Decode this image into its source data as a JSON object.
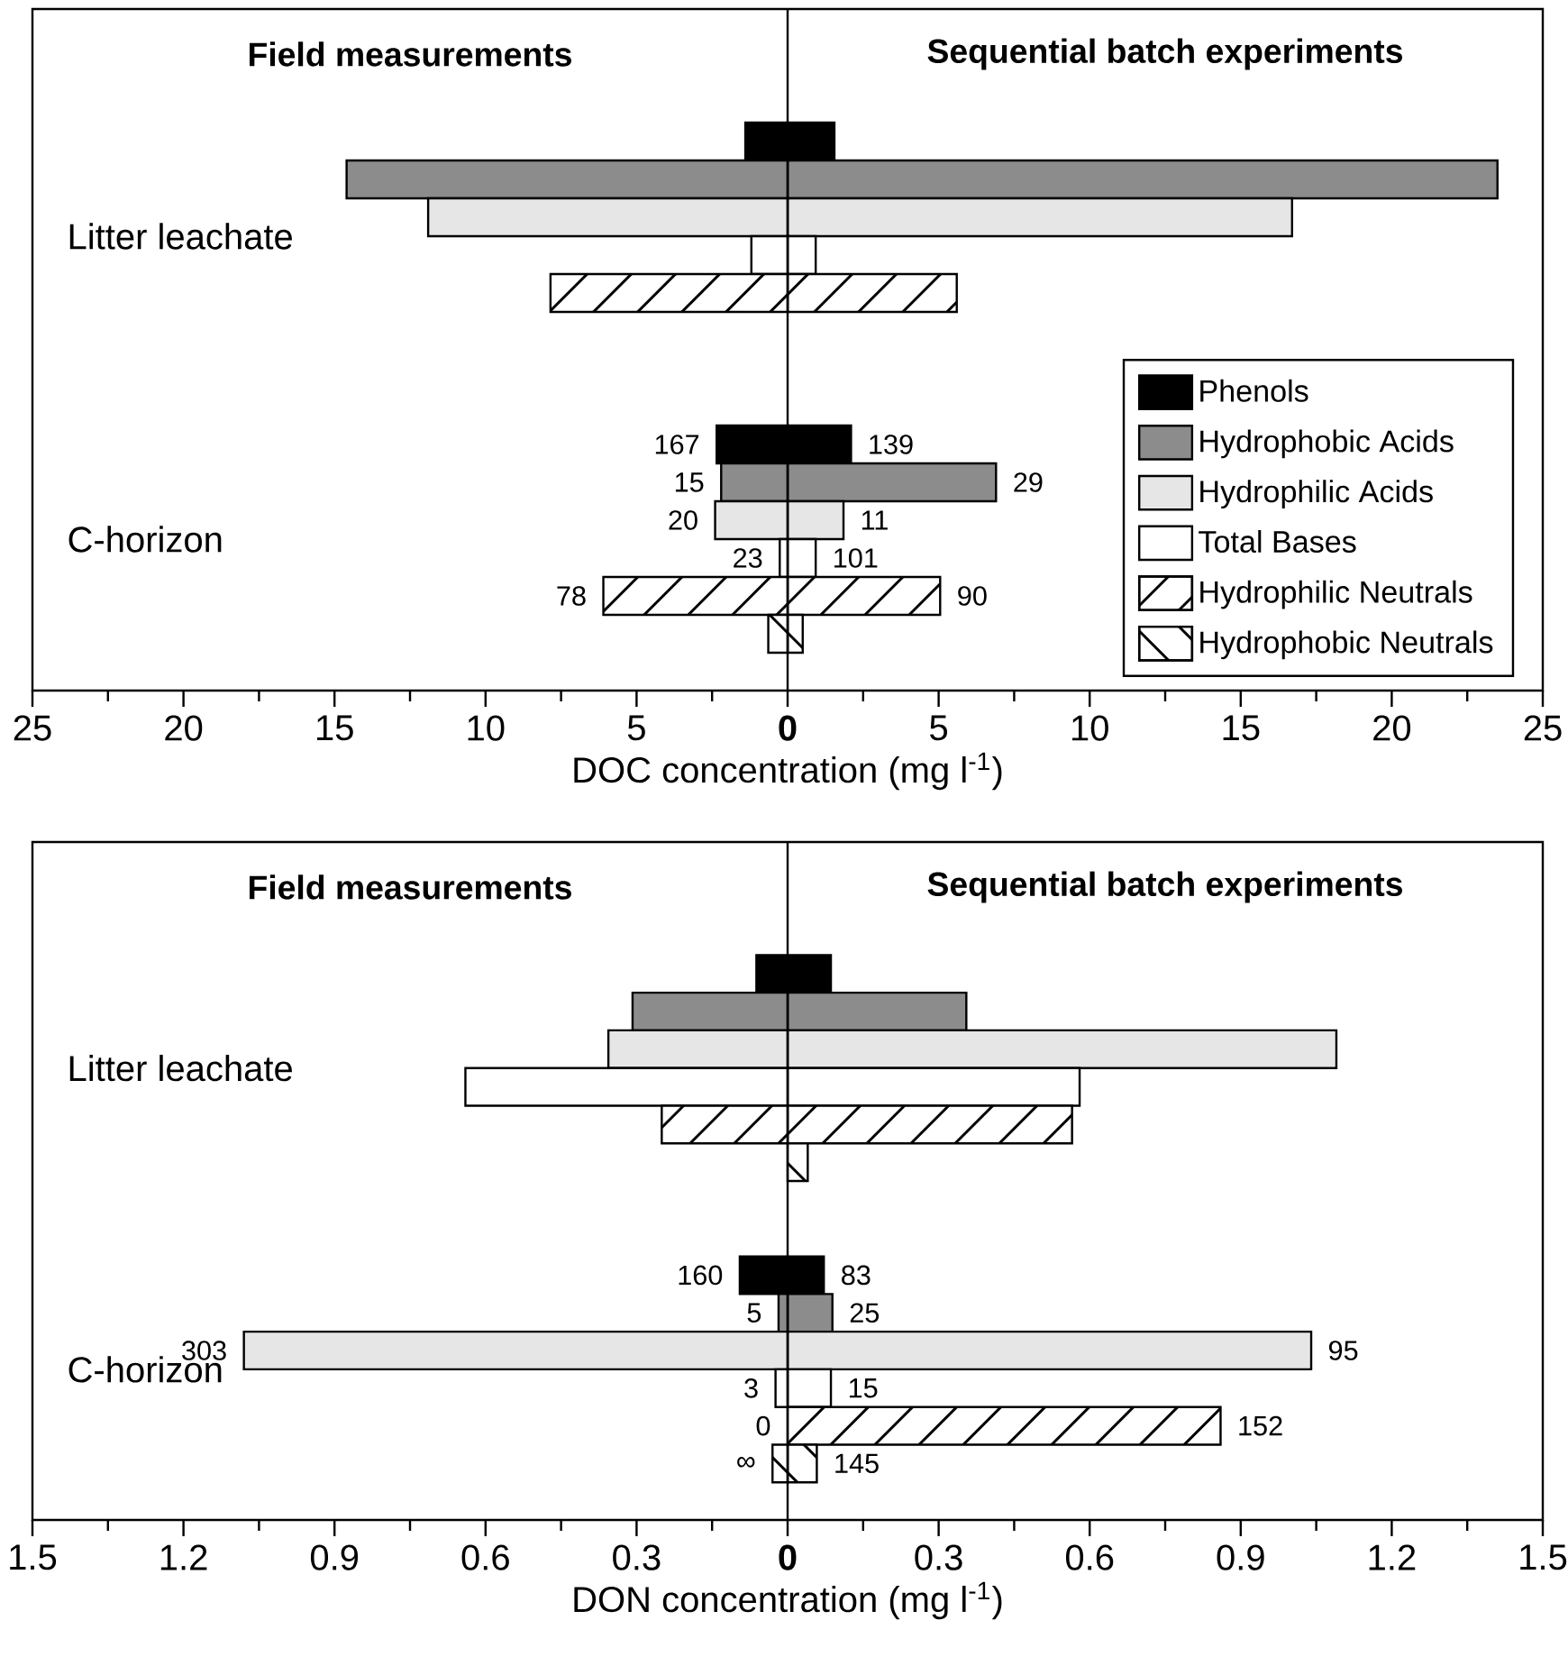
{
  "chart_data": [
    {
      "type": "bar",
      "orientation": "horizontal",
      "stacked": true,
      "xlabel": "DOC concentration (mg l$^{-1}$)",
      "annotations": [
        "Field measurements",
        "Sequential batch experiments",
        "Litter leachate",
        "C-horizon",
        "139",
        "29",
        "11",
        "101",
        "90",
        "167",
        "15",
        "20",
        "23",
        "78"
      ],
      "categories": [
        null,
        null,
        null,
        null,
        null,
        null,
        null,
        null,
        null,
        null,
        null,
        null,
        null,
        null,
        null,
        null,
        null,
        null
      ],
      "xlim": [
        -25,
        25
      ],
      "xticks": [
        {
          "value": -25,
          "label": "25"
        },
        {
          "value": -22.5,
          "label": null
        },
        {
          "value": -20,
          "label": "20"
        },
        {
          "value": -17.5,
          "label": null
        },
        {
          "value": -15,
          "label": "15"
        },
        {
          "value": -12.5,
          "label": null
        },
        {
          "value": -10,
          "label": "10"
        },
        {
          "value": -7.5,
          "label": null
        },
        {
          "value": -5,
          "label": "5"
        },
        {
          "value": -2.5,
          "label": null
        },
        0,
        {
          "value": 2.5,
          "label": null
        },
        5,
        {
          "value": 7.5,
          "label": null
        },
        10,
        {
          "value": 12.5,
          "label": null
        },
        15,
        {
          "value": 17.5,
          "label": null
        },
        20,
        {
          "value": 22.5,
          "label": null
        },
        25
      ],
      "ref_lines": [
        {
          "axis": "x",
          "value": 0
        }
      ],
      "legend": "bottom right",
      "series": [
        {
          "name": "Phenols",
          "color": "#000000",
          "values": [
            null,
            null,
            null,
            1.55,
            null,
            null,
            null,
            null,
            null,
            null,
            null,
            2.1,
            null,
            null,
            null,
            null,
            null,
            null
          ]
        },
        {
          "name": "Hydrophobic Acids",
          "color": "#8c8c8c",
          "values": [
            null,
            null,
            null,
            null,
            23.5,
            null,
            null,
            null,
            null,
            null,
            null,
            null,
            6.9,
            null,
            null,
            null,
            null,
            null
          ]
        },
        {
          "name": "Hydrophilic Acids",
          "color": "#e6e6e6",
          "values": [
            null,
            null,
            null,
            null,
            null,
            16.7,
            null,
            null,
            null,
            null,
            null,
            null,
            null,
            1.85,
            null,
            null,
            null,
            null
          ]
        },
        {
          "name": "Total Bases",
          "color": "#ffffff",
          "values": [
            null,
            null,
            null,
            null,
            null,
            null,
            0.93,
            null,
            null,
            null,
            null,
            null,
            null,
            null,
            0.93,
            null,
            null,
            null
          ]
        },
        {
          "name": "Hydrophilic Neutrals",
          "color": "#ffffff",
          "values": [
            null,
            null,
            null,
            null,
            null,
            null,
            null,
            5.6,
            null,
            null,
            null,
            null,
            null,
            null,
            null,
            5.05,
            null,
            null
          ]
        },
        {
          "name": "Hydrophobic Neutrals",
          "color": "#ffffff",
          "values": [
            null,
            null,
            null,
            null,
            null,
            null,
            null,
            null,
            null,
            null,
            null,
            null,
            null,
            null,
            null,
            null,
            0.5,
            null
          ]
        },
        {
          "color": "#000000",
          "values": [
            null,
            null,
            null,
            -1.4,
            null,
            null,
            null,
            null,
            null,
            null,
            null,
            -2.35,
            null,
            null,
            null,
            null,
            null,
            null
          ]
        },
        {
          "color": "#8c8c8c",
          "values": [
            null,
            null,
            null,
            null,
            -14.6,
            null,
            null,
            null,
            null,
            null,
            null,
            null,
            -2.2,
            null,
            null,
            null,
            null,
            null
          ]
        },
        {
          "color": "#e6e6e6",
          "values": [
            null,
            null,
            null,
            null,
            null,
            -11.9,
            null,
            null,
            null,
            null,
            null,
            null,
            null,
            -2.4,
            null,
            null,
            null,
            null
          ]
        },
        {
          "color": "#ffffff",
          "values": [
            null,
            null,
            null,
            null,
            null,
            null,
            -1.2,
            null,
            null,
            null,
            null,
            null,
            null,
            null,
            -0.26,
            null,
            null,
            null
          ]
        },
        {
          "color": "#ffffff",
          "values": [
            null,
            null,
            null,
            null,
            null,
            null,
            null,
            -7.85,
            null,
            null,
            null,
            null,
            null,
            null,
            null,
            -6.1,
            null,
            null
          ]
        },
        {
          "color": "#ffffff",
          "values": [
            null,
            null,
            null,
            null,
            null,
            null,
            null,
            null,
            null,
            null,
            null,
            null,
            null,
            null,
            null,
            null,
            -0.64,
            null
          ]
        }
      ]
    },
    {
      "type": "bar",
      "orientation": "horizontal",
      "stacked": true,
      "xlabel": "DON concentration (mg l$^{-1}$)",
      "annotations": [
        "Field measurements",
        "Sequential batch experiments",
        "Litter leachate",
        "C-horizon",
        "83",
        "25",
        "95",
        "15",
        "152",
        "145",
        "160",
        "5",
        "303",
        "3",
        "0",
        "∞"
      ],
      "categories": [
        null,
        null,
        null,
        null,
        null,
        null,
        null,
        null,
        null,
        null,
        null,
        null,
        null,
        null,
        null,
        null,
        null,
        null
      ],
      "xlim": [
        -1.5,
        1.5
      ],
      "xticks": [
        {
          "value": -1.5,
          "label": "1.5"
        },
        {
          "value": -1.35,
          "label": null
        },
        {
          "value": -1.2,
          "label": "1.2"
        },
        {
          "value": -1.05,
          "label": null
        },
        {
          "value": -0.9,
          "label": "0.9"
        },
        {
          "value": -0.75,
          "label": null
        },
        {
          "value": -0.6,
          "label": "0.6"
        },
        {
          "value": -0.45,
          "label": null
        },
        {
          "value": -0.3,
          "label": "0.3"
        },
        {
          "value": -0.15,
          "label": null
        },
        0,
        {
          "value": 0.15,
          "label": null
        },
        0.3,
        {
          "value": 0.45,
          "label": null
        },
        0.6,
        {
          "value": 0.75,
          "label": null
        },
        0.9,
        {
          "value": 1.05,
          "label": null
        },
        1.2,
        {
          "value": 1.35,
          "label": null
        },
        1.5
      ],
      "ref_lines": [
        {
          "axis": "x",
          "value": 0
        }
      ],
      "series": [
        {
          "color": "#000000",
          "values": [
            null,
            null,
            null,
            0.086,
            null,
            null,
            null,
            null,
            null,
            null,
            null,
            0.072,
            null,
            null,
            null,
            null,
            null,
            null
          ]
        },
        {
          "color": "#8c8c8c",
          "values": [
            null,
            null,
            null,
            null,
            0.355,
            null,
            null,
            null,
            null,
            null,
            null,
            null,
            0.089,
            null,
            null,
            null,
            null,
            null
          ]
        },
        {
          "color": "#e6e6e6",
          "values": [
            null,
            null,
            null,
            null,
            null,
            1.09,
            null,
            null,
            null,
            null,
            null,
            null,
            null,
            1.04,
            null,
            null,
            null,
            null
          ]
        },
        {
          "color": "#ffffff",
          "values": [
            null,
            null,
            null,
            null,
            null,
            null,
            0.58,
            null,
            null,
            null,
            null,
            null,
            null,
            null,
            0.086,
            null,
            null,
            null
          ]
        },
        {
          "color": "#ffffff",
          "values": [
            null,
            null,
            null,
            null,
            null,
            null,
            null,
            0.565,
            null,
            null,
            null,
            null,
            null,
            null,
            null,
            0.86,
            null,
            null
          ]
        },
        {
          "color": "#ffffff",
          "values": [
            null,
            null,
            null,
            null,
            null,
            null,
            null,
            null,
            0.04,
            null,
            null,
            null,
            null,
            null,
            null,
            null,
            0.058,
            null
          ]
        },
        {
          "color": "#000000",
          "values": [
            null,
            null,
            null,
            -0.062,
            null,
            null,
            null,
            null,
            null,
            null,
            null,
            -0.095,
            null,
            null,
            null,
            null,
            null,
            null
          ]
        },
        {
          "color": "#8c8c8c",
          "values": [
            null,
            null,
            null,
            null,
            -0.308,
            null,
            null,
            null,
            null,
            null,
            null,
            null,
            -0.018,
            null,
            null,
            null,
            null,
            null
          ]
        },
        {
          "color": "#e6e6e6",
          "values": [
            null,
            null,
            null,
            null,
            null,
            -0.356,
            null,
            null,
            null,
            null,
            null,
            null,
            null,
            -1.08,
            null,
            null,
            null,
            null
          ]
        },
        {
          "color": "#ffffff",
          "values": [
            null,
            null,
            null,
            null,
            null,
            null,
            -0.64,
            null,
            null,
            null,
            null,
            null,
            null,
            null,
            -0.024,
            null,
            null,
            null
          ]
        },
        {
          "color": "#ffffff",
          "values": [
            null,
            null,
            null,
            null,
            null,
            null,
            null,
            -0.25,
            null,
            null,
            null,
            null,
            null,
            null,
            null,
            0,
            null,
            null
          ]
        },
        {
          "color": "#ffffff",
          "values": [
            null,
            null,
            null,
            null,
            null,
            null,
            null,
            null,
            null,
            null,
            null,
            null,
            null,
            null,
            null,
            null,
            -0.03,
            null
          ]
        }
      ]
    }
  ]
}
